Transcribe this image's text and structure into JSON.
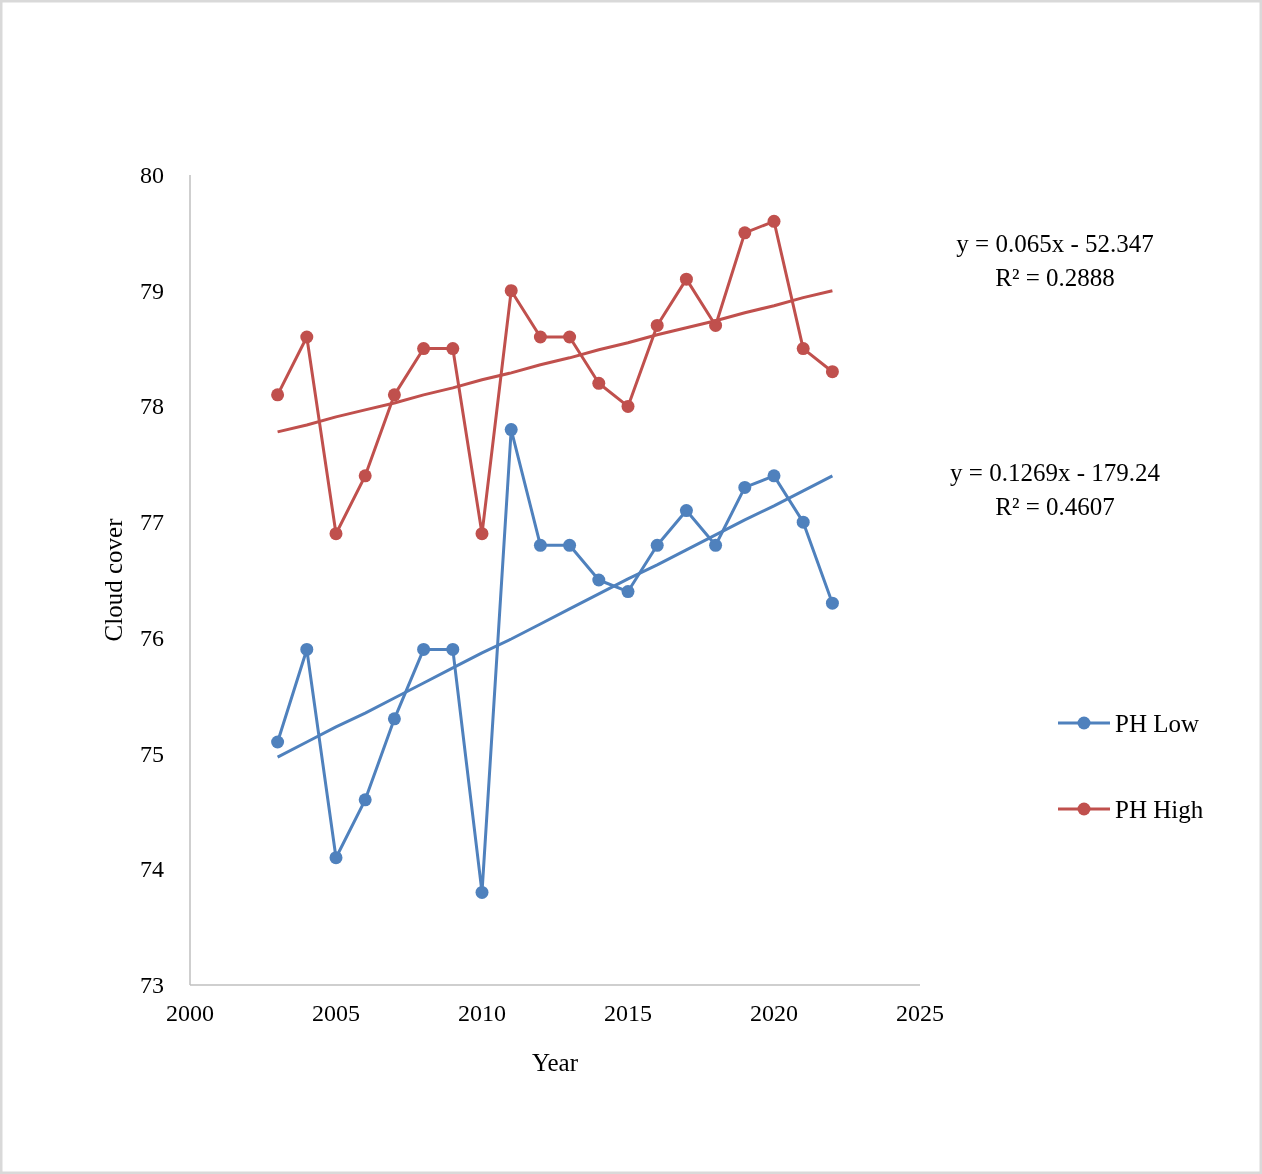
{
  "chart_data": {
    "type": "line",
    "xlabel": "Year",
    "ylabel": "Cloud cover",
    "xlim": [
      2000,
      2025
    ],
    "xticks": [
      2000,
      2005,
      2010,
      2015,
      2020,
      2025
    ],
    "ylim": [
      73,
      80
    ],
    "yticks": [
      73,
      74,
      75,
      76,
      77,
      78,
      79,
      80
    ],
    "grid": false,
    "legend": "right",
    "marker": "circle",
    "line_style": "solid",
    "x": [
      2003,
      2004,
      2005,
      2006,
      2007,
      2008,
      2009,
      2010,
      2011,
      2012,
      2013,
      2014,
      2015,
      2016,
      2017,
      2018,
      2019,
      2020,
      2021,
      2022
    ],
    "series": [
      {
        "name": "PH Low",
        "color": "#4f81bd",
        "values": [
          75.1,
          75.9,
          74.1,
          74.6,
          75.3,
          75.9,
          75.9,
          73.8,
          77.8,
          76.8,
          76.8,
          76.5,
          76.4,
          76.8,
          77.1,
          76.8,
          77.3,
          77.4,
          77.0,
          76.3
        ]
      },
      {
        "name": "PH High",
        "color": "#c0504d",
        "values": [
          78.1,
          78.6,
          76.9,
          77.4,
          78.1,
          78.5,
          78.5,
          76.9,
          79.0,
          78.6,
          78.6,
          78.2,
          78.0,
          78.7,
          79.1,
          78.7,
          79.5,
          79.6,
          78.5,
          78.3
        ]
      },
      {
        "type": "line",
        "marker": "none",
        "color": "#4f81bd",
        "values": [
          74.97,
          75.1,
          75.23,
          75.35,
          75.48,
          75.61,
          75.74,
          75.87,
          75.99,
          76.12,
          76.25,
          76.38,
          76.51,
          76.63,
          76.76,
          76.89,
          77.02,
          77.14,
          77.27,
          77.4
        ]
      },
      {
        "type": "line",
        "marker": "none",
        "color": "#c0504d",
        "values": [
          77.78,
          77.84,
          77.91,
          77.97,
          78.03,
          78.1,
          78.16,
          78.23,
          78.29,
          78.36,
          78.42,
          78.49,
          78.55,
          78.62,
          78.68,
          78.74,
          78.81,
          78.87,
          78.94,
          79.0
        ]
      }
    ],
    "annotations": [
      "y = 0.065x - 52.347\nR² = 0.2888",
      "y = 0.1269x - 179.24\nR² = 0.4607"
    ]
  }
}
